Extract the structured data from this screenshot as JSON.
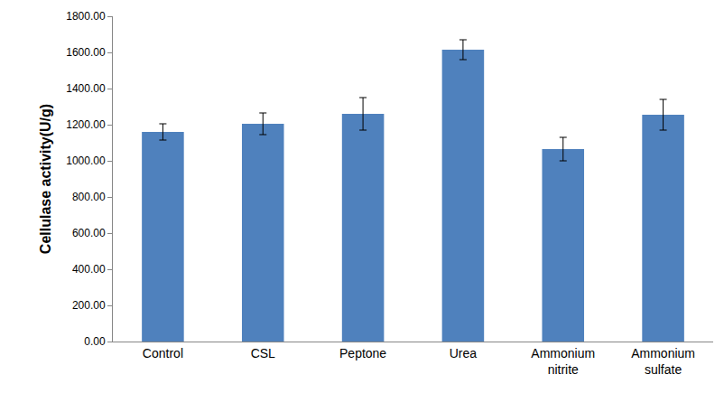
{
  "chart_data": {
    "type": "bar",
    "y_label": "Cellulase activity(U/g)",
    "categories": [
      "Control",
      "CSL",
      "Peptone",
      "Urea",
      "Ammonium nitrite",
      "Ammonium sulfate"
    ],
    "values": [
      1160,
      1205,
      1260,
      1615,
      1065,
      1255
    ],
    "errors": [
      45,
      60,
      90,
      55,
      65,
      85
    ],
    "color": "#4f81bd",
    "ylim": [
      0,
      1800
    ],
    "yticks": [
      {
        "value": 0,
        "label": "0.00"
      },
      {
        "value": 200,
        "label": "200.00"
      },
      {
        "value": 400,
        "label": "400.00"
      },
      {
        "value": 600,
        "label": "600.00"
      },
      {
        "value": 800,
        "label": "800.00"
      },
      {
        "value": 1000,
        "label": "1000.00"
      },
      {
        "value": 1200,
        "label": "1200.00"
      },
      {
        "value": 1400,
        "label": "1400.00"
      },
      {
        "value": 1600,
        "label": "1600.00"
      },
      {
        "value": 1800,
        "label": "1800.00"
      }
    ],
    "grid": false
  }
}
